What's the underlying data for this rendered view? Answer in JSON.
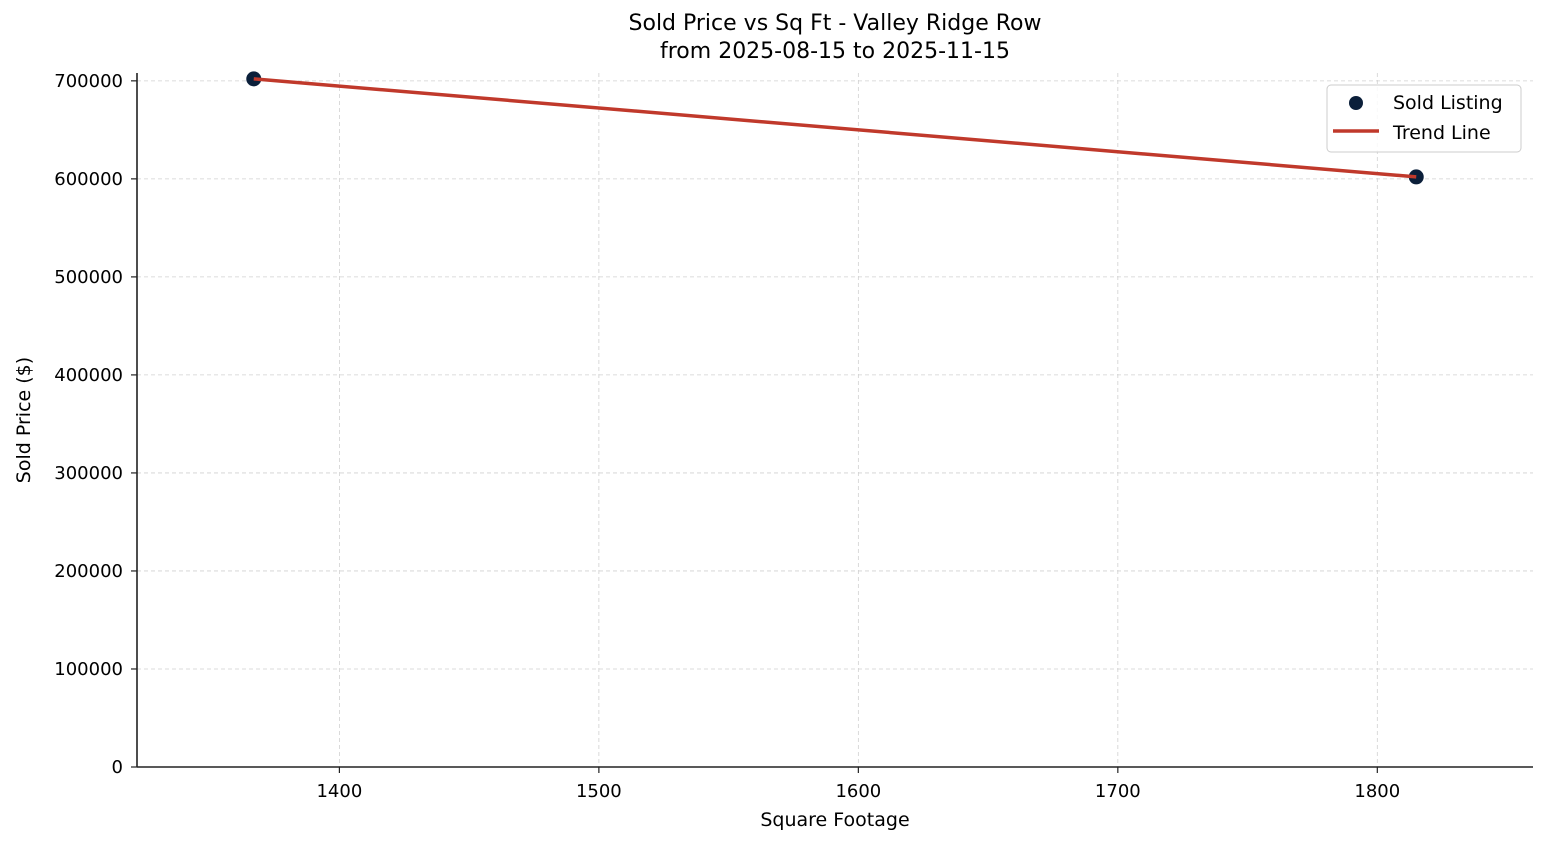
{
  "chart_data": {
    "type": "scatter",
    "title": "Sold Price vs Sq Ft - Valley Ridge Row",
    "subtitle": "from 2025-08-15 to 2025-11-15",
    "xlabel": "Square Footage",
    "ylabel": "Sold Price ($)",
    "xlim": [
      1322,
      1860
    ],
    "ylim": [
      0,
      708000
    ],
    "xticks": [
      1400,
      1500,
      1600,
      1700,
      1800
    ],
    "yticks": [
      0,
      100000,
      200000,
      300000,
      400000,
      500000,
      600000,
      700000
    ],
    "grid": true,
    "legend_position": "upper right",
    "series": [
      {
        "name": "Sold Listing",
        "kind": "scatter",
        "color": "#0b1f3a",
        "points": [
          {
            "x": 1367,
            "y": 702000
          },
          {
            "x": 1815,
            "y": 602000
          }
        ]
      },
      {
        "name": "Trend Line",
        "kind": "line",
        "color": "#c0392b",
        "points": [
          {
            "x": 1367,
            "y": 702000
          },
          {
            "x": 1815,
            "y": 602000
          }
        ]
      }
    ]
  },
  "labels": {
    "title_line1": "Sold Price vs Sq Ft - Valley Ridge Row",
    "title_line2": "from 2025-08-15 to 2025-11-15",
    "xlabel": "Square Footage",
    "ylabel": "Sold Price ($)",
    "legend_scatter": "Sold Listing",
    "legend_line": "Trend Line",
    "xtick_labels": [
      "1400",
      "1500",
      "1600",
      "1700",
      "1800"
    ],
    "ytick_labels": [
      "0",
      "100000",
      "200000",
      "300000",
      "400000",
      "500000",
      "600000",
      "700000"
    ]
  }
}
